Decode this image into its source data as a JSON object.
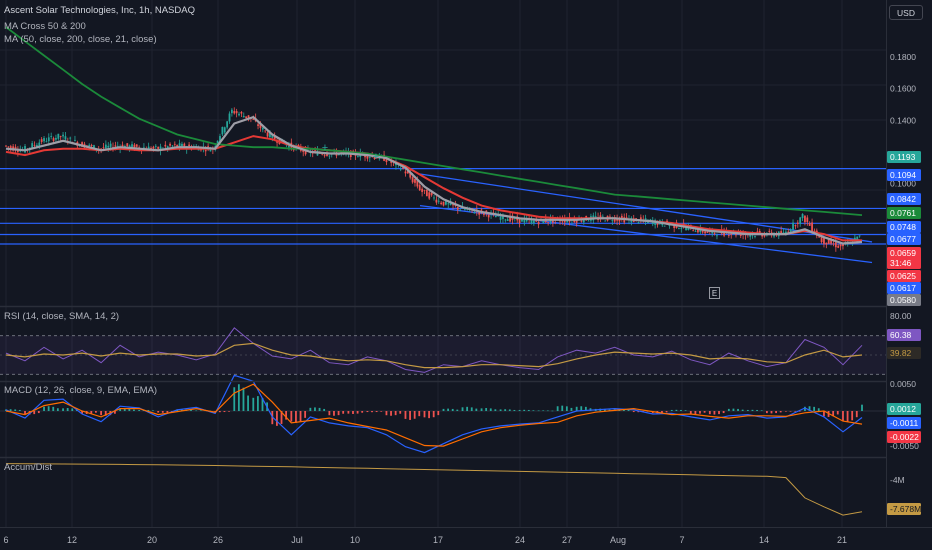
{
  "header": {
    "title": "Ascent Solar Technologies, Inc, 1h, NASDAQ",
    "indicator1": "MA Cross 50 & 200",
    "indicator2": "MA (50, close, 200, close, 21, close)",
    "currency": "USD",
    "earnings_marker": "E"
  },
  "chart_data": [
    {
      "type": "line",
      "panel": "price",
      "y_axis_ticks": [
        {
          "value": 0.18,
          "label": "0.1800"
        },
        {
          "value": 0.16,
          "label": "0.1600"
        },
        {
          "value": 0.14,
          "label": "0.1400"
        },
        {
          "value": 0.1,
          "label": "0.1000"
        }
      ],
      "x_tick_labels": [
        "6",
        "12",
        "20",
        "26",
        "Jul",
        "10",
        "17",
        "24",
        "27",
        "Aug",
        "7",
        "14",
        "21"
      ],
      "price_labels": [
        {
          "text": "0.1193",
          "color": "#26a69a"
        },
        {
          "text": "0.1094",
          "color": "#2962ff"
        },
        {
          "text": "0.0842",
          "color": "#2962ff"
        },
        {
          "text": "0.0761",
          "color": "#1b8a3a"
        },
        {
          "text": "0.0748",
          "color": "#2962ff"
        },
        {
          "text": "0.0677",
          "color": "#2962ff"
        },
        {
          "text": "0.0659",
          "color": "#f23645"
        },
        {
          "text": "31:46",
          "color": "#f23645"
        },
        {
          "text": "0.0625",
          "color": "#f23645"
        },
        {
          "text": "0.0617",
          "color": "#2962ff"
        },
        {
          "text": "0.0580",
          "color": "#787b86"
        }
      ],
      "series": [
        {
          "name": "Price",
          "values": [
            0.124,
            0.121,
            0.127,
            0.13,
            0.125,
            0.122,
            0.124,
            0.123,
            0.122,
            0.124,
            0.123,
            0.122,
            0.146,
            0.141,
            0.13,
            0.124,
            0.12,
            0.119,
            0.119,
            0.118,
            0.116,
            0.109,
            0.095,
            0.088,
            0.084,
            0.082,
            0.079,
            0.077,
            0.076,
            0.077,
            0.077,
            0.078,
            0.078,
            0.077,
            0.076,
            0.074,
            0.072,
            0.069,
            0.069,
            0.068,
            0.068,
            0.068,
            0.079,
            0.064,
            0.06,
            0.066
          ]
        },
        {
          "name": "MA 50",
          "values": [
            0.12,
            0.118,
            0.121,
            0.122,
            0.122,
            0.121,
            0.122,
            0.121,
            0.121,
            0.122,
            0.122,
            0.122,
            0.126,
            0.13,
            0.128,
            0.124,
            0.122,
            0.121,
            0.12,
            0.119,
            0.116,
            0.111,
            0.104,
            0.097,
            0.091,
            0.086,
            0.083,
            0.081,
            0.079,
            0.078,
            0.078,
            0.078,
            0.078,
            0.077,
            0.076,
            0.075,
            0.073,
            0.071,
            0.07,
            0.069,
            0.068,
            0.068,
            0.07,
            0.068,
            0.064,
            0.064
          ]
        },
        {
          "name": "MA 200",
          "values": [
            0.199,
            0.19,
            0.181,
            0.172,
            0.163,
            0.155,
            0.148,
            0.141,
            0.136,
            0.131,
            0.128,
            0.125,
            0.124,
            0.123,
            0.123,
            0.122,
            0.122,
            0.121,
            0.12,
            0.119,
            0.117,
            0.115,
            0.113,
            0.111,
            0.109,
            0.107,
            0.105,
            0.103,
            0.101,
            0.099,
            0.097,
            0.095,
            0.093,
            0.092,
            0.091,
            0.09,
            0.089,
            0.088,
            0.087,
            0.086,
            0.085,
            0.084,
            0.083,
            0.082,
            0.081,
            0.08
          ]
        },
        {
          "name": "MA 21",
          "values": [
            0.122,
            0.121,
            0.124,
            0.127,
            0.124,
            0.121,
            0.123,
            0.122,
            0.121,
            0.123,
            0.123,
            0.122,
            0.138,
            0.142,
            0.131,
            0.124,
            0.12,
            0.119,
            0.119,
            0.118,
            0.116,
            0.11,
            0.098,
            0.09,
            0.085,
            0.082,
            0.08,
            0.078,
            0.077,
            0.077,
            0.077,
            0.078,
            0.078,
            0.077,
            0.076,
            0.074,
            0.072,
            0.07,
            0.069,
            0.068,
            0.068,
            0.068,
            0.071,
            0.066,
            0.062,
            0.063
          ]
        }
      ]
    },
    {
      "type": "line",
      "panel": "rsi",
      "legend": "RSI (14, close, SMA, 14, 2)",
      "y_axis_ticks": [
        {
          "value": 80,
          "label": "80.00"
        }
      ],
      "levels": [
        70,
        50,
        30
      ],
      "value_labels": [
        {
          "text": "60.38",
          "color": "#7e57c2"
        },
        {
          "text": "39.82",
          "color": "#c49a44"
        }
      ],
      "series": [
        {
          "name": "RSI",
          "values": [
            52,
            44,
            58,
            46,
            55,
            42,
            60,
            48,
            53,
            50,
            45,
            51,
            78,
            62,
            49,
            46,
            55,
            42,
            40,
            48,
            44,
            35,
            32,
            40,
            38,
            44,
            40,
            37,
            35,
            48,
            55,
            52,
            58,
            50,
            48,
            54,
            45,
            40,
            52,
            44,
            38,
            42,
            66,
            58,
            40,
            60
          ]
        },
        {
          "name": "RSI-based MA",
          "values": [
            50,
            48,
            51,
            50,
            52,
            49,
            52,
            50,
            51,
            51,
            49,
            50,
            60,
            62,
            55,
            50,
            49,
            46,
            44,
            45,
            44,
            40,
            37,
            37,
            38,
            40,
            40,
            39,
            38,
            41,
            46,
            50,
            53,
            52,
            51,
            52,
            50,
            46,
            47,
            46,
            43,
            42,
            50,
            55,
            48,
            50
          ]
        }
      ]
    },
    {
      "type": "bar",
      "panel": "macd",
      "legend": "MACD (12, 26, close, 9, EMA, EMA)",
      "y_axis_ticks": [
        {
          "value": 0.005,
          "label": "0.0050"
        },
        {
          "value": -0.005,
          "label": "-0.0050"
        }
      ],
      "value_labels": [
        {
          "text": "0.0012",
          "color": "#26a69a"
        },
        {
          "text": "-0.0011",
          "color": "#2962ff"
        },
        {
          "text": "-0.0022",
          "color": "#f23645"
        }
      ],
      "series": [
        {
          "name": "Histogram",
          "values": [
            0.0003,
            -0.0006,
            0.0008,
            0.0005,
            -0.0005,
            -0.0008,
            0.0004,
            0.0002,
            -0.0003,
            0.0003,
            0.0001,
            -0.0002,
            0.0045,
            0.0025,
            -0.0025,
            -0.002,
            0.0006,
            -0.0008,
            -0.0005,
            -0.0002,
            -0.0008,
            -0.0015,
            -0.0012,
            0.0004,
            0.0007,
            0.0005,
            0.0003,
            0.0002,
            0.0001,
            0.0009,
            0.0008,
            0.0004,
            0.0003,
            -0.0002,
            -0.0004,
            0.0002,
            -0.0005,
            -0.0006,
            0.0004,
            0.0002,
            -0.0004,
            -0.0001,
            0.0008,
            -0.001,
            -0.0018,
            0.0012
          ]
        },
        {
          "name": "MACD",
          "values": [
            0.0002,
            -0.0012,
            0.0018,
            0.002,
            -0.0005,
            -0.0018,
            0.0008,
            0.0005,
            -0.001,
            0.0002,
            0.0006,
            -0.0004,
            0.006,
            0.005,
            -0.001,
            -0.004,
            -0.001,
            -0.002,
            -0.0025,
            -0.0028,
            -0.004,
            -0.006,
            -0.007,
            -0.0055,
            -0.004,
            -0.003,
            -0.0025,
            -0.0022,
            -0.002,
            -0.001,
            0.0,
            0.0002,
            0.0004,
            0.0002,
            -0.0005,
            -0.0004,
            -0.001,
            -0.0015,
            -0.0008,
            -0.0006,
            -0.0012,
            -0.001,
            0.0005,
            -0.001,
            -0.0035,
            -0.0011
          ]
        },
        {
          "name": "Signal",
          "values": [
            0.0,
            -0.0006,
            0.0009,
            0.0015,
            0.0,
            -0.001,
            0.0004,
            0.0004,
            -0.0006,
            -0.0001,
            0.0004,
            -0.0002,
            0.003,
            0.0045,
            0.0015,
            -0.002,
            -0.0016,
            -0.0012,
            -0.002,
            -0.0026,
            -0.0032,
            -0.0045,
            -0.0058,
            -0.0059,
            -0.0047,
            -0.0035,
            -0.0028,
            -0.0024,
            -0.0021,
            -0.0019,
            -0.0008,
            -0.0002,
            0.0001,
            0.0004,
            -0.0001,
            -0.0006,
            -0.0005,
            -0.0009,
            -0.0012,
            -0.0008,
            -0.0008,
            -0.0009,
            -0.0003,
            0.0,
            -0.0017,
            -0.0022
          ]
        }
      ]
    },
    {
      "type": "line",
      "panel": "accum_dist",
      "legend": "Accum/Dist",
      "y_axis_ticks": [
        {
          "value": -4,
          "label": "-4M"
        }
      ],
      "value_labels": [
        {
          "text": "-7.678M",
          "color": "#c49a44"
        }
      ],
      "series": [
        {
          "name": "Accum/Dist",
          "values": [
            -0.1,
            -0.12,
            -0.14,
            -0.16,
            -0.18,
            -0.2,
            -0.22,
            -0.25,
            -0.28,
            -0.32,
            -0.36,
            -0.4,
            -0.45,
            -0.5,
            -0.55,
            -0.6,
            -0.66,
            -0.72,
            -0.78,
            -0.84,
            -0.9,
            -0.96,
            -1.02,
            -1.08,
            -1.14,
            -1.2,
            -1.26,
            -1.32,
            -1.38,
            -1.44,
            -1.5,
            -1.56,
            -1.62,
            -1.68,
            -1.74,
            -1.8,
            -1.86,
            -1.92,
            -1.98,
            -2.04,
            -2.1,
            -2.3,
            -5.5,
            -6.9,
            -8.2,
            -7.68
          ]
        }
      ]
    }
  ],
  "drawings": {
    "horizontal_levels": [
      0.1094,
      0.0842,
      0.0748,
      0.0677,
      0.0617
    ],
    "channel_upper": [
      [
        0.106,
        0.063
      ]
    ],
    "channel_lower": [
      [
        0.086,
        0.05
      ]
    ]
  }
}
